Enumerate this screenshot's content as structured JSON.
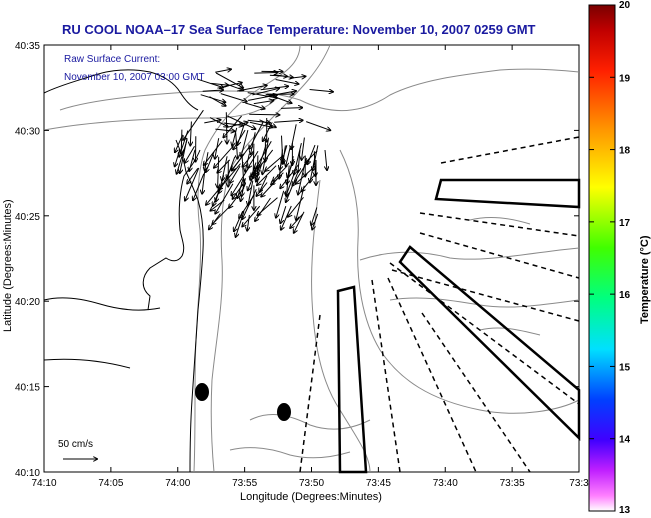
{
  "map": {
    "title": "RU COOL  NOAA–17  Sea Surface Temperature:  November 10, 2007 0259 GMT",
    "annotation_line1": "Raw Surface Current:",
    "annotation_line2": "November 10, 2007 03:00 GMT",
    "scale_label": "50 cm/s",
    "xlabel": "Longitude (Degrees:Minutes)",
    "ylabel": "Latitude (Degrees:Minutes)",
    "x_ticks": [
      "74:10",
      "74:05",
      "74:00",
      "73:55",
      "73:50",
      "73:45",
      "73:40",
      "73:35",
      "73:3"
    ],
    "y_ticks": [
      "40:35",
      "40:30",
      "40:25",
      "40:20",
      "40:15",
      "40:10"
    ],
    "colorbar": {
      "label": "Temperature (°C)",
      "ticks": [
        "20",
        "19",
        "18",
        "17",
        "16",
        "15",
        "14",
        "13"
      ],
      "range": [
        13,
        20
      ],
      "colors": [
        "#7b0000",
        "#ff0000",
        "#ffa500",
        "#ffff00",
        "#00ff00",
        "#00ffff",
        "#0000ff",
        "#ff00ff",
        "#ffffff"
      ]
    }
  }
}
